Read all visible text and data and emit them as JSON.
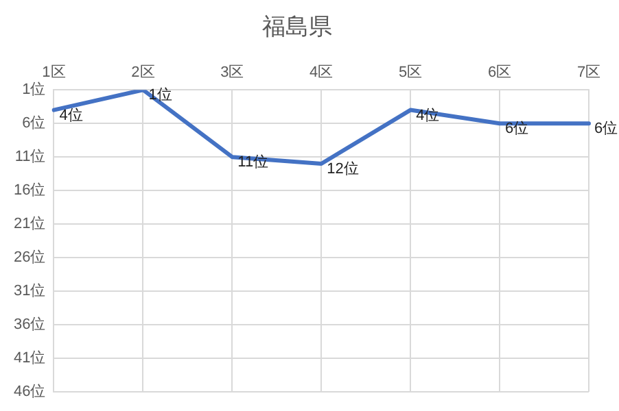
{
  "chart_data": {
    "type": "line",
    "title": "福島県",
    "categories": [
      "1区",
      "2区",
      "3区",
      "4区",
      "5区",
      "6区",
      "7区"
    ],
    "series": [
      {
        "color": "#4472c4",
        "values": [
          4,
          1,
          11,
          12,
          4,
          6,
          6
        ],
        "value_labels": [
          "4位",
          "1位",
          "11位",
          "12位",
          "4位",
          "6位",
          "6位"
        ]
      }
    ],
    "ylim": [
      46,
      1
    ],
    "yticks": [
      {
        "value": 1,
        "label": "1位"
      },
      {
        "value": 6,
        "label": "6位"
      },
      {
        "value": 11,
        "label": "11位"
      },
      {
        "value": 16,
        "label": "16位"
      },
      {
        "value": 21,
        "label": "21位"
      },
      {
        "value": 26,
        "label": "26位"
      },
      {
        "value": 31,
        "label": "31位"
      },
      {
        "value": 36,
        "label": "36位"
      },
      {
        "value": 41,
        "label": "41位"
      },
      {
        "value": 46,
        "label": "46位"
      }
    ],
    "grid": true,
    "legend": false,
    "marker": "none",
    "line_style": "solid"
  }
}
